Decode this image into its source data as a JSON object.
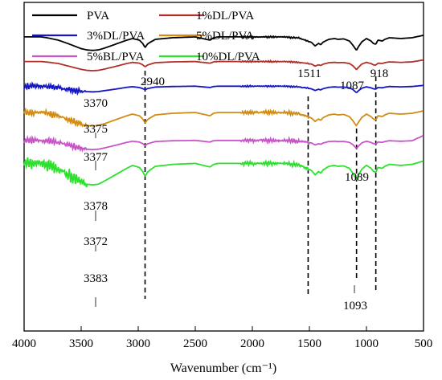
{
  "chart_data": {
    "type": "line",
    "title": "",
    "xlabel": "Wavenumber (cm⁻¹)",
    "ylabel": "",
    "x_reversed": true,
    "xlim": [
      4000,
      500
    ],
    "x_ticks": [
      "4000",
      "3500",
      "3000",
      "2500",
      "2000",
      "1500",
      "1000",
      "500"
    ],
    "legend_position": "top-left",
    "legend": [
      "PVA",
      "1%DL/PVA",
      "3%DL/PVA",
      "5%DL/PVA",
      "5%BL/PVA",
      "10%DL/PVA"
    ],
    "reference_lines": [
      {
        "x": 2940,
        "label": "2940"
      },
      {
        "x": 1511,
        "label": "1511"
      },
      {
        "x": 1087,
        "label": "1087"
      },
      {
        "x": 918,
        "label": "918"
      }
    ],
    "annotations": [
      "3370",
      "3375",
      "3377",
      "3378",
      "3372",
      "3383",
      "1089",
      "1093"
    ],
    "series": [
      {
        "name": "PVA",
        "color": "#000000",
        "baseline": 0.895,
        "x": [
          4000,
          3850,
          3800,
          3700,
          3600,
          3500,
          3450,
          3400,
          3350,
          3300,
          3200,
          3100,
          3050,
          2990,
          2960,
          2940,
          2920,
          2900,
          2850,
          2700,
          2500,
          2370,
          2340,
          2300,
          2100,
          2000,
          1800,
          1700,
          1650,
          1600,
          1560,
          1511,
          1480,
          1450,
          1420,
          1400,
          1380,
          1330,
          1280,
          1250,
          1200,
          1150,
          1120,
          1100,
          1087,
          1070,
          1040,
          1000,
          960,
          940,
          918,
          900,
          860,
          840,
          800,
          700,
          600,
          500
        ],
        "y": [
          0,
          0,
          0.005,
          0.02,
          0.045,
          0.072,
          0.08,
          0.083,
          0.08,
          0.07,
          0.045,
          0.02,
          0.01,
          0.02,
          0.04,
          0.065,
          0.045,
          0.035,
          0.015,
          0.005,
          0,
          0.02,
          0.005,
          0,
          0,
          0,
          0,
          0,
          0.005,
          0.005,
          0.015,
          0.025,
          0.035,
          0.055,
          0.04,
          0.048,
          0.032,
          0.015,
          0.01,
          0.015,
          0.012,
          0.025,
          0.05,
          0.07,
          0.082,
          0.06,
          0.03,
          0.01,
          0.025,
          0.04,
          0.045,
          0.02,
          0.025,
          0.015,
          0.005,
          0.01,
          0.005,
          -0.01
        ]
      },
      {
        "name": "1%DL/PVA",
        "color": "#b0302a",
        "baseline": 0.82,
        "x": [
          4000,
          3850,
          3800,
          3700,
          3600,
          3500,
          3450,
          3400,
          3350,
          3300,
          3200,
          3100,
          3050,
          2990,
          2960,
          2940,
          2920,
          2900,
          2850,
          2700,
          2500,
          2370,
          2340,
          2300,
          2100,
          2000,
          1800,
          1700,
          1650,
          1600,
          1560,
          1511,
          1480,
          1450,
          1420,
          1400,
          1380,
          1330,
          1280,
          1250,
          1200,
          1150,
          1120,
          1100,
          1087,
          1070,
          1040,
          1000,
          960,
          940,
          918,
          900,
          860,
          840,
          800,
          700,
          600,
          500
        ],
        "y": [
          0,
          0,
          0.003,
          0.012,
          0.03,
          0.048,
          0.054,
          0.056,
          0.054,
          0.047,
          0.03,
          0.012,
          0.005,
          0.01,
          0.02,
          0.032,
          0.022,
          0.017,
          0.007,
          0.002,
          0,
          0.01,
          0.002,
          0,
          0,
          0,
          0,
          0,
          0.002,
          0.005,
          0.008,
          0.012,
          0.016,
          0.028,
          0.02,
          0.024,
          0.016,
          0.007,
          0.005,
          0.007,
          0.006,
          0.012,
          0.025,
          0.04,
          0.05,
          0.035,
          0.015,
          0.005,
          0.012,
          0.02,
          0.022,
          0.01,
          0.012,
          0.007,
          0.002,
          0.005,
          0.002,
          -0.01
        ]
      },
      {
        "name": "3%DL/PVA",
        "color": "#1515c8",
        "baseline": 0.745,
        "x": [
          4000,
          3850,
          3800,
          3700,
          3600,
          3500,
          3450,
          3400,
          3350,
          3300,
          3200,
          3100,
          3050,
          2990,
          2960,
          2940,
          2920,
          2900,
          2850,
          2700,
          2500,
          2370,
          2340,
          2300,
          2100,
          2000,
          1800,
          1700,
          1650,
          1600,
          1560,
          1511,
          1480,
          1450,
          1420,
          1400,
          1380,
          1330,
          1280,
          1250,
          1200,
          1150,
          1120,
          1100,
          1087,
          1070,
          1040,
          1000,
          960,
          940,
          918,
          900,
          860,
          840,
          800,
          700,
          600,
          500
        ],
        "y": [
          0,
          0,
          0.002,
          0.01,
          0.02,
          0.03,
          0.033,
          0.035,
          0.033,
          0.028,
          0.018,
          0.007,
          0.003,
          0.008,
          0.015,
          0.022,
          0.015,
          0.012,
          0.005,
          0.002,
          0,
          0.008,
          0.002,
          0,
          0,
          0,
          0,
          0,
          0.002,
          0.004,
          0.008,
          0.012,
          0.017,
          0.026,
          0.019,
          0.023,
          0.015,
          0.007,
          0.004,
          0.006,
          0.005,
          0.01,
          0.02,
          0.032,
          0.04,
          0.028,
          0.012,
          0.004,
          0.01,
          0.016,
          0.018,
          0.008,
          0.01,
          0.006,
          0.002,
          0.004,
          0.002,
          -0.005
        ]
      },
      {
        "name": "5%DL/PVA",
        "color": "#d08c14",
        "baseline": 0.665,
        "x": [
          4000,
          3850,
          3800,
          3700,
          3600,
          3500,
          3450,
          3400,
          3350,
          3300,
          3200,
          3100,
          3050,
          2990,
          2960,
          2940,
          2920,
          2900,
          2850,
          2700,
          2500,
          2370,
          2340,
          2300,
          2100,
          2000,
          1800,
          1700,
          1650,
          1600,
          1560,
          1511,
          1480,
          1450,
          1420,
          1400,
          1380,
          1330,
          1280,
          1250,
          1200,
          1150,
          1120,
          1100,
          1089,
          1070,
          1040,
          1000,
          960,
          940,
          918,
          900,
          860,
          840,
          800,
          700,
          600,
          500
        ],
        "y": [
          0,
          0,
          0.005,
          0.02,
          0.045,
          0.072,
          0.08,
          0.083,
          0.08,
          0.07,
          0.045,
          0.02,
          0.01,
          0.02,
          0.04,
          0.065,
          0.045,
          0.035,
          0.015,
          0.005,
          0,
          0.02,
          0.005,
          0,
          0,
          0,
          0,
          0,
          0.005,
          0.005,
          0.015,
          0.025,
          0.035,
          0.055,
          0.04,
          0.048,
          0.032,
          0.015,
          0.01,
          0.015,
          0.012,
          0.025,
          0.05,
          0.07,
          0.082,
          0.06,
          0.03,
          0.01,
          0.025,
          0.04,
          0.045,
          0.02,
          0.025,
          0.015,
          0.005,
          0.01,
          0.005,
          -0.01
        ]
      },
      {
        "name": "5%BL/PVA",
        "color": "#c855c8",
        "baseline": 0.58,
        "x": [
          4000,
          3850,
          3800,
          3700,
          3600,
          3500,
          3450,
          3400,
          3350,
          3300,
          3200,
          3100,
          3050,
          2990,
          2960,
          2940,
          2920,
          2900,
          2850,
          2700,
          2500,
          2370,
          2340,
          2300,
          2100,
          2000,
          1800,
          1700,
          1650,
          1600,
          1560,
          1511,
          1480,
          1450,
          1420,
          1400,
          1380,
          1330,
          1280,
          1250,
          1200,
          1150,
          1120,
          1100,
          1087,
          1070,
          1040,
          1000,
          960,
          940,
          918,
          900,
          860,
          840,
          800,
          700,
          600,
          500
        ],
        "y": [
          0,
          0,
          0.003,
          0.012,
          0.03,
          0.048,
          0.054,
          0.056,
          0.054,
          0.047,
          0.03,
          0.012,
          0.005,
          0.01,
          0.02,
          0.032,
          0.022,
          0.017,
          0.007,
          0.002,
          0,
          0.01,
          0.002,
          0,
          0,
          0,
          0,
          0,
          0.002,
          0.005,
          0.008,
          0.012,
          0.016,
          0.028,
          0.02,
          0.024,
          0.016,
          0.007,
          0.005,
          0.007,
          0.006,
          0.012,
          0.025,
          0.04,
          0.05,
          0.035,
          0.015,
          0.005,
          0.012,
          0.02,
          0.022,
          0.01,
          0.012,
          0.007,
          0.002,
          0.005,
          0.002,
          -0.03
        ]
      },
      {
        "name": "10%DL/PVA",
        "color": "#2ee02e",
        "baseline": 0.51,
        "x": [
          4000,
          3850,
          3800,
          3700,
          3600,
          3500,
          3450,
          3400,
          3350,
          3300,
          3200,
          3100,
          3050,
          2990,
          2960,
          2940,
          2920,
          2900,
          2850,
          2700,
          2500,
          2370,
          2340,
          2300,
          2100,
          2000,
          1800,
          1700,
          1650,
          1600,
          1560,
          1511,
          1480,
          1450,
          1420,
          1400,
          1380,
          1330,
          1280,
          1250,
          1200,
          1150,
          1120,
          1100,
          1093,
          1070,
          1040,
          1000,
          960,
          940,
          918,
          900,
          860,
          840,
          800,
          700,
          600,
          500
        ],
        "y": [
          0,
          0,
          0.01,
          0.035,
          0.075,
          0.115,
          0.128,
          0.132,
          0.128,
          0.11,
          0.07,
          0.03,
          0.012,
          0.025,
          0.05,
          0.08,
          0.055,
          0.042,
          0.018,
          0.006,
          0,
          0.022,
          0.006,
          0,
          0,
          0,
          0,
          0,
          0.006,
          0.008,
          0.02,
          0.032,
          0.045,
          0.07,
          0.05,
          0.06,
          0.04,
          0.018,
          0.012,
          0.018,
          0.015,
          0.03,
          0.06,
          0.085,
          0.1,
          0.072,
          0.035,
          0.012,
          0.03,
          0.048,
          0.055,
          0.025,
          0.03,
          0.018,
          0.006,
          0.012,
          0.006,
          -0.015
        ]
      }
    ]
  }
}
